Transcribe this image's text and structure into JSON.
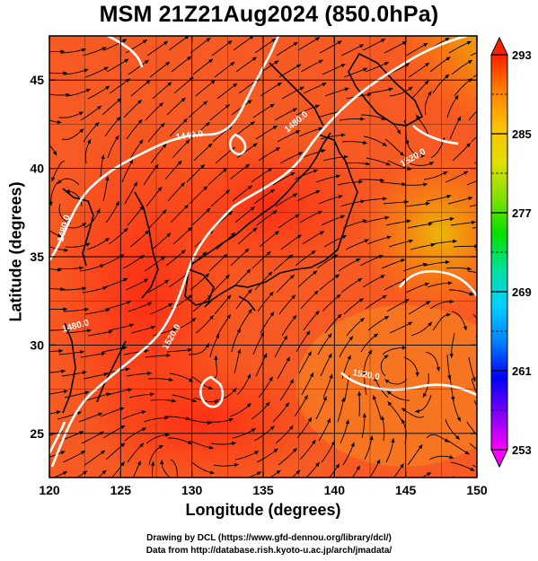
{
  "title": "MSM 21Z21Aug2024 (850.0hPa)",
  "axes": {
    "xlabel": "Longitude (degrees)",
    "ylabel": "Latitude  (degrees)",
    "xlim": [
      120,
      150
    ],
    "ylim": [
      22.5,
      47.5
    ],
    "xticks": [
      120,
      125,
      130,
      135,
      140,
      145,
      150
    ],
    "yticks": [
      25,
      30,
      35,
      40,
      45
    ],
    "grid": true
  },
  "colorbar": {
    "range": [
      253,
      293
    ],
    "ticks": [
      293,
      285,
      277,
      269,
      261,
      253
    ],
    "colors": [
      "#ff00ff",
      "#8000ff",
      "#0000ff",
      "#0080ff",
      "#00d0ff",
      "#00e0a0",
      "#00e000",
      "#80e000",
      "#e0e000",
      "#ffc000",
      "#ff8000",
      "#ff2000"
    ]
  },
  "contours": [
    {
      "label": "1440.0"
    },
    {
      "label": "1480.0"
    },
    {
      "label": "1520.0"
    },
    {
      "label": "1480.0"
    },
    {
      "label": "1520.0"
    },
    {
      "label": "1520.0"
    },
    {
      "label": "1480.0"
    }
  ],
  "credits": {
    "line1": "Drawing by DCL (https://www.gfd-dennou.org/library/dcl/)",
    "line2": "Data from http://database.rish.kyoto-u.ac.jp/arch/jmadata/"
  }
}
